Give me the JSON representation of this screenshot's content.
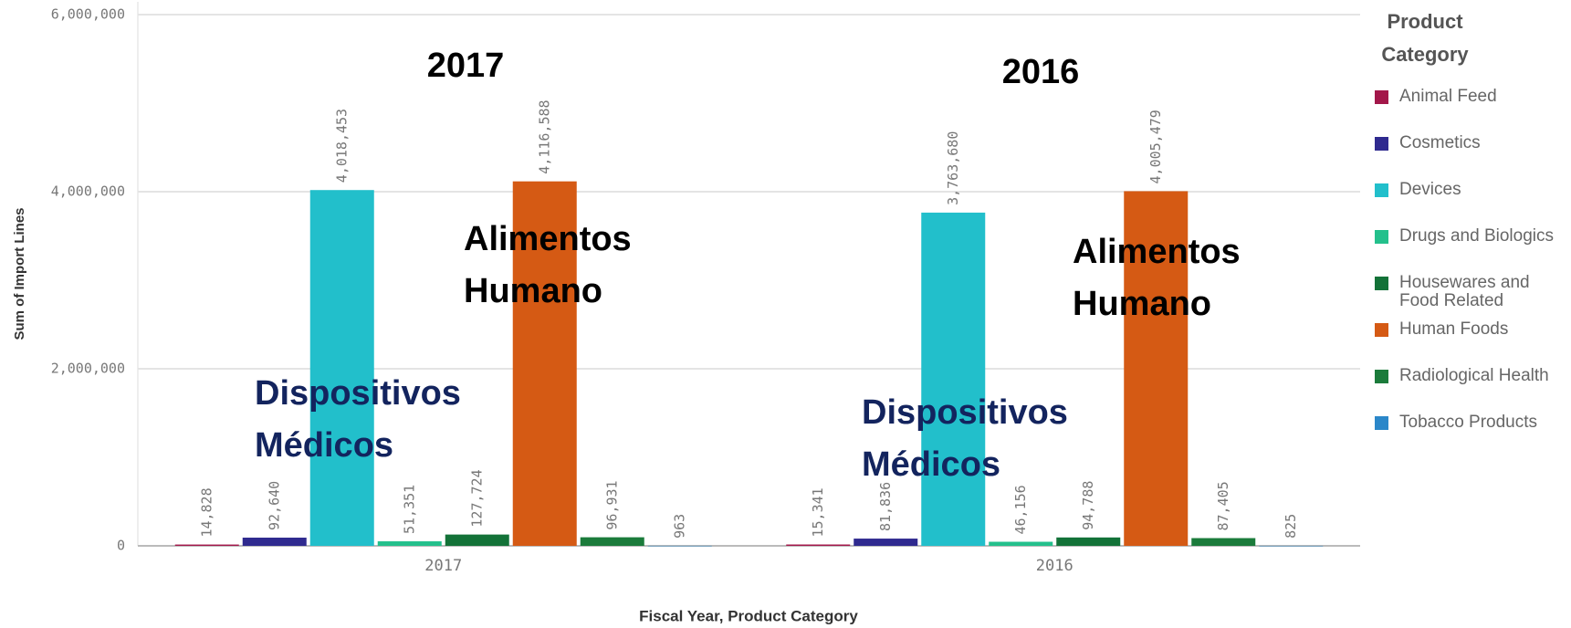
{
  "chart_data": {
    "type": "bar",
    "x_label": "Fiscal Year, Product Category",
    "y_label": "Sum of Import Lines",
    "legend_title": "Product Category",
    "categories": [
      "2017",
      "2016"
    ],
    "ylim": [
      0,
      6000000
    ],
    "yticks": [
      0,
      {
        "value": 2000000,
        "label": "2,000,000"
      },
      {
        "value": 4000000,
        "label": "4,000,000"
      },
      {
        "value": 6000000,
        "label": "6,000,000"
      }
    ],
    "grid": true,
    "series": [
      {
        "name": "Animal Feed",
        "color": "#a3174a",
        "values": [
          14828,
          15341
        ],
        "value_labels": [
          "14,828",
          "15,341"
        ]
      },
      {
        "name": "Cosmetics",
        "color": "#2f2a8f",
        "values": [
          92640,
          81836
        ],
        "value_labels": [
          "92,640",
          "81,836"
        ]
      },
      {
        "name": "Devices",
        "color": "#22bfcb",
        "values": [
          4018453,
          3763680
        ],
        "value_labels": [
          "4,018,453",
          "3,763,680"
        ]
      },
      {
        "name": "Drugs and Biologics",
        "color": "#24c08c",
        "values": [
          51351,
          46156
        ],
        "value_labels": [
          "51,351",
          "46,156"
        ]
      },
      {
        "name": "Housewares and Food Related",
        "color": "#137238",
        "values": [
          127724,
          94788
        ],
        "value_labels": [
          "127,724",
          "94,788"
        ]
      },
      {
        "name": "Human Foods",
        "color": "#d55a14",
        "values": [
          4116588,
          4005479
        ],
        "value_labels": [
          "4,116,588",
          "4,005,479"
        ]
      },
      {
        "name": "Radiological Health",
        "color": "#1b7b3b",
        "values": [
          96931,
          87405
        ],
        "value_labels": [
          "96,931",
          "87,405"
        ]
      },
      {
        "name": "Tobacco Products",
        "color": "#2b87c9",
        "values": [
          963,
          825
        ],
        "value_labels": [
          "963",
          "825"
        ]
      }
    ],
    "annotations": [
      {
        "lines": [
          "2017"
        ],
        "color": "#000000"
      },
      {
        "lines": [
          "2016"
        ],
        "color": "#000000"
      },
      {
        "lines": [
          "Alimentos",
          "Humano"
        ],
        "color": "#000000"
      },
      {
        "lines": [
          "Alimentos",
          "Humano"
        ],
        "color": "#000000"
      },
      {
        "lines": [
          "Dispositivos",
          "Médicos"
        ],
        "color": "#13245e"
      },
      {
        "lines": [
          "Dispositivos",
          "Médicos"
        ],
        "color": "#13245e"
      }
    ]
  }
}
